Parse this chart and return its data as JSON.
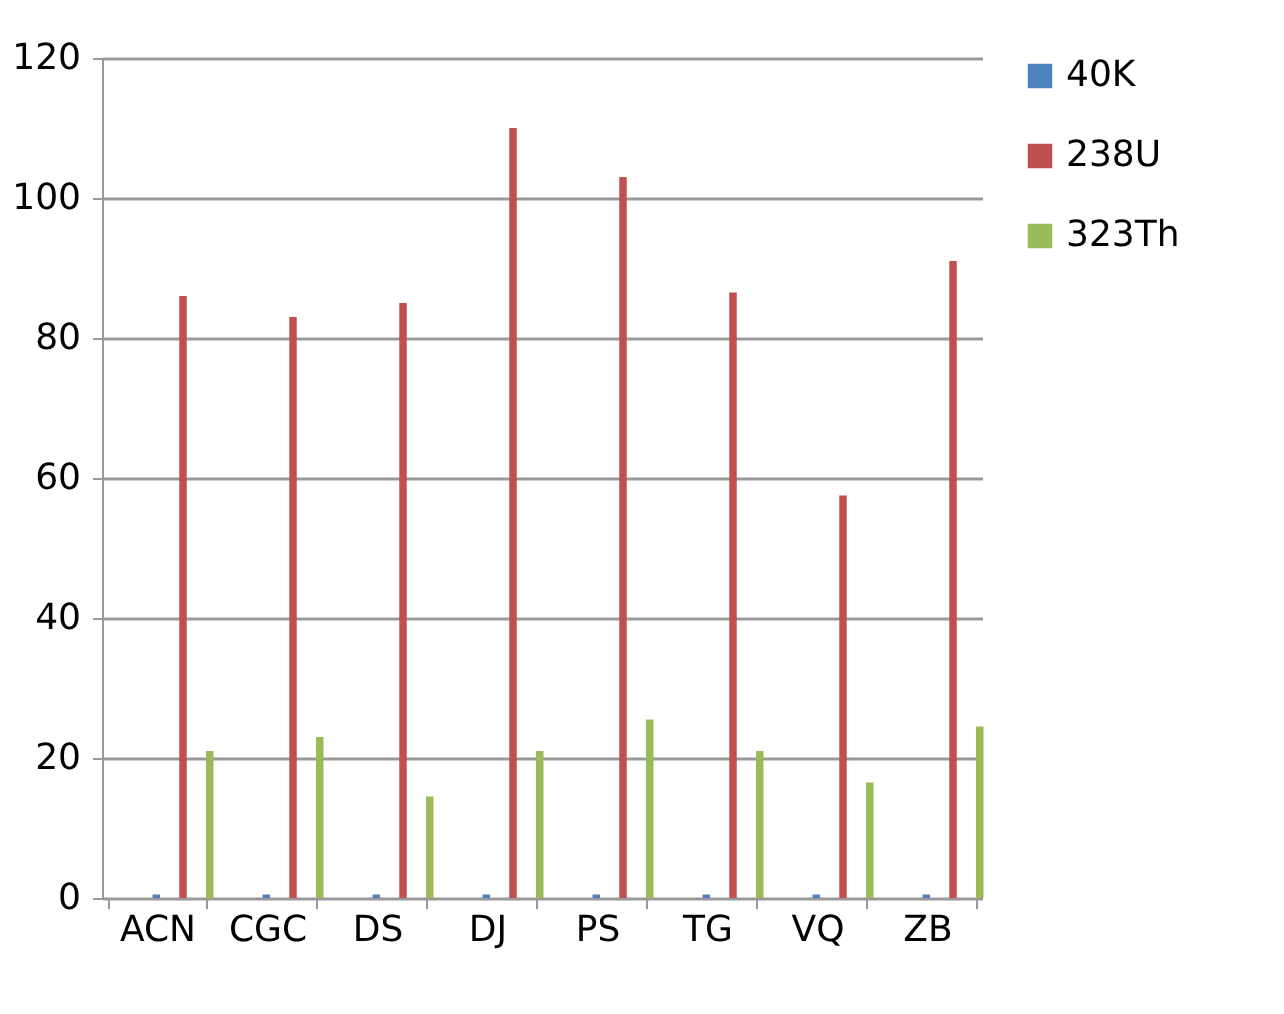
{
  "chart_data": {
    "type": "bar",
    "categories": [
      "ACN",
      "CGC",
      "DS",
      "DJ",
      "PS",
      "TG",
      "VQ",
      "ZB"
    ],
    "series": [
      {
        "name": "40K",
        "color": "#4f81bd",
        "values": [
          0.5,
          0.5,
          0.5,
          0.5,
          0.5,
          0.5,
          0.5,
          0.5
        ]
      },
      {
        "name": "238U",
        "color": "#c0504d",
        "values": [
          86,
          83,
          85,
          110,
          103,
          86.5,
          57.5,
          91
        ]
      },
      {
        "name": "323Th",
        "color": "#9bbb59",
        "values": [
          21,
          23,
          14.5,
          21,
          25.5,
          21,
          16.5,
          24.5
        ]
      }
    ],
    "ylim": [
      0,
      120
    ],
    "yticks": [
      0,
      20,
      40,
      60,
      80,
      100,
      120
    ],
    "grid": "y",
    "legend": "right"
  }
}
